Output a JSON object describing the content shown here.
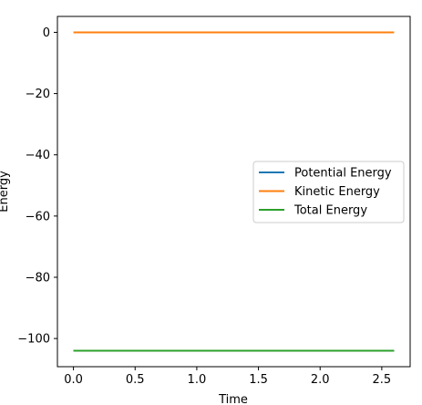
{
  "chart_data": {
    "type": "line",
    "title": "",
    "xlabel": "Time",
    "ylabel": "Energy",
    "xlim": [
      -0.13,
      2.73
    ],
    "ylim": [
      -109.2,
      5.2
    ],
    "xticks": [
      0.0,
      0.5,
      1.0,
      1.5,
      2.0,
      2.5
    ],
    "xtick_labels": [
      "0.0",
      "0.5",
      "1.0",
      "1.5",
      "2.0",
      "2.5"
    ],
    "yticks": [
      0,
      -20,
      -40,
      -60,
      -80,
      -100
    ],
    "ytick_labels": [
      "0",
      "−20",
      "−40",
      "−60",
      "−80",
      "−100"
    ],
    "grid": false,
    "legend_position": "center-right",
    "x": [
      0.0,
      2.6
    ],
    "series": [
      {
        "name": "Potential Energy",
        "color": "#1f77b4",
        "values": [
          -104.0,
          -104.0
        ]
      },
      {
        "name": "Kinetic Energy",
        "color": "#ff7f0e",
        "values": [
          0.0,
          0.0
        ]
      },
      {
        "name": "Total Energy",
        "color": "#2ca02c",
        "values": [
          -104.0,
          -104.0
        ]
      }
    ]
  }
}
